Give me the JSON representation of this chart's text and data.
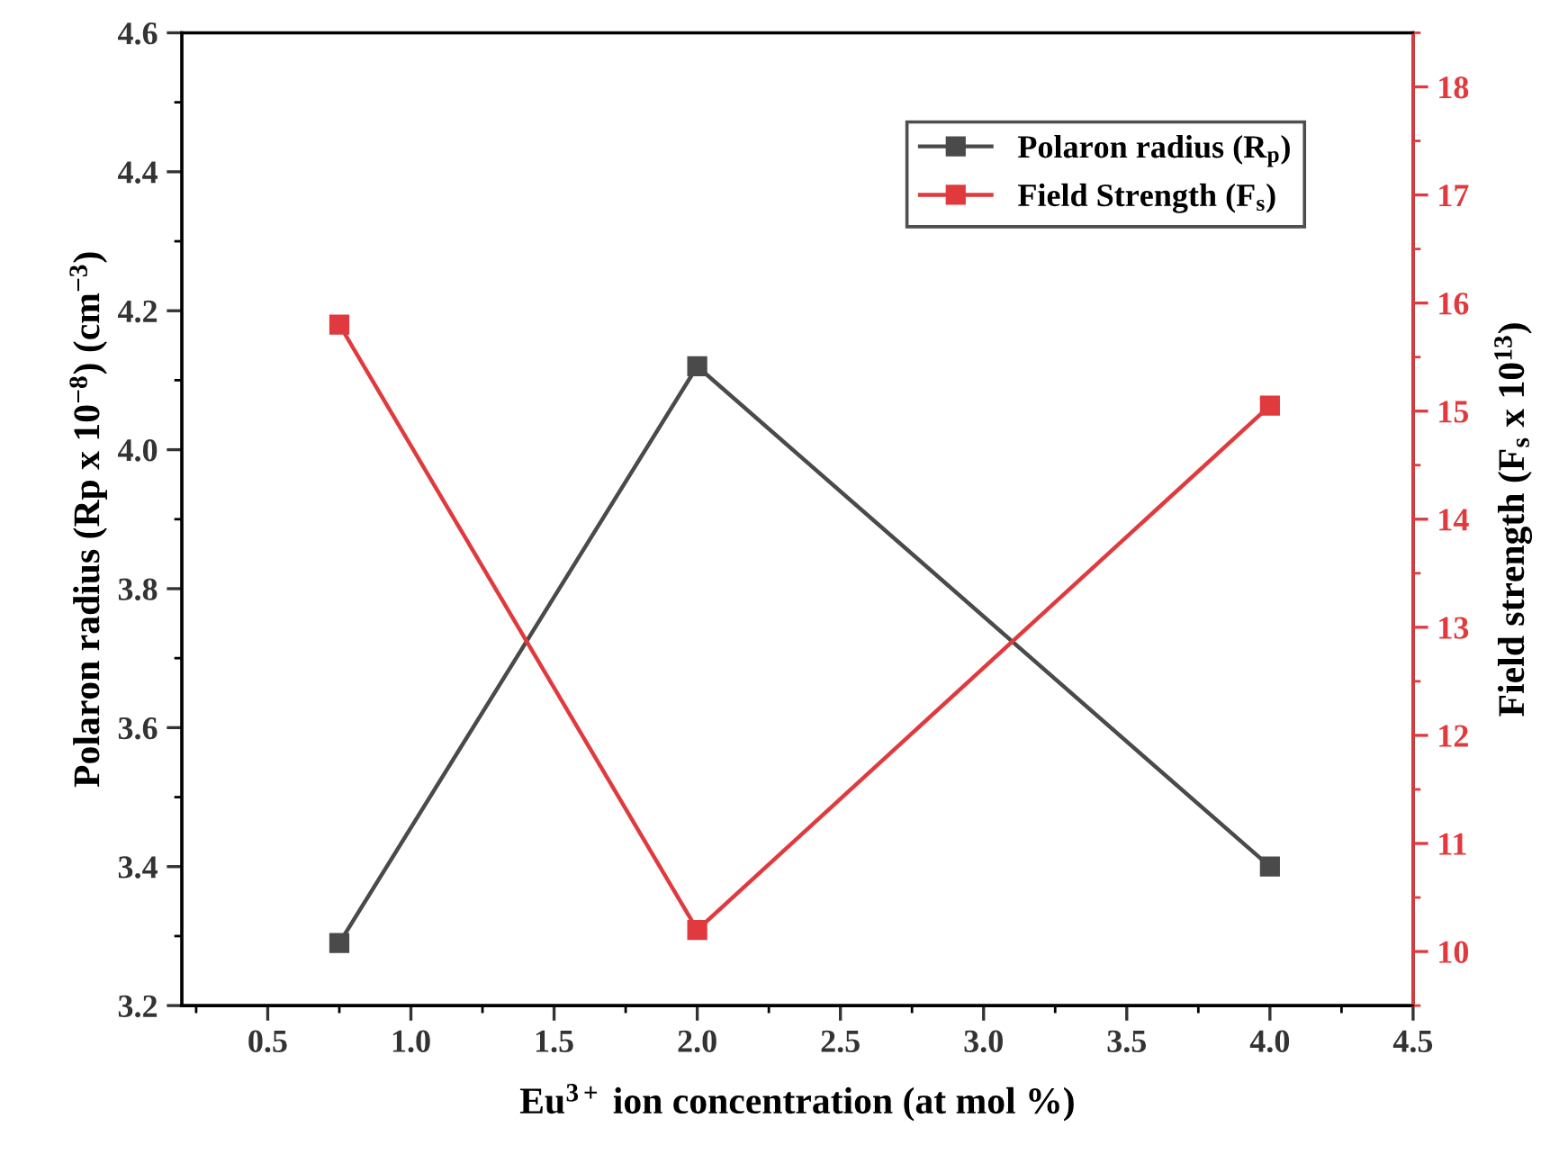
{
  "chart_data": {
    "type": "line",
    "xlabel": "Eu$^{3+}$ ion concentration (at mol %)",
    "ylabel": "Polaron radius (Rp x 10$^{−8}$) (cm$^{−3}$)",
    "y2label": "Field strength (F$_{s}$ x 10$^{13}$)",
    "x": [
      0.75,
      2.0,
      4.0
    ],
    "series": [
      {
        "name": "Polaron radius (R$_{p}$)",
        "color": "#4a4a4a",
        "values": [
          3.29,
          4.12,
          3.4
        ]
      },
      {
        "name": "Field Strength (F$_{s}$)",
        "color": "#e03a3e",
        "values": [
          15.8,
          10.2,
          15.05
        ],
        "axis": "y2"
      }
    ],
    "xlim": [
      0.2,
      4.5
    ],
    "xticks": [
      0.5,
      {
        "value": 1,
        "label": "1.0"
      },
      1.5,
      {
        "value": 2,
        "label": "2.0"
      },
      2.5,
      {
        "value": 3,
        "label": "3.0"
      },
      3.5,
      {
        "value": 4,
        "label": "4.0"
      },
      4.5
    ],
    "ylim": [
      3.2,
      4.6
    ],
    "yticks": [
      3.2,
      3.4,
      3.6,
      3.8,
      {
        "value": 4,
        "label": "4.0"
      },
      4.2,
      4.4,
      4.6
    ],
    "y2lim": [
      9.5,
      18.5
    ],
    "y2ticks": [
      10,
      11,
      12,
      13,
      14,
      15,
      16,
      17,
      18
    ],
    "marker": "square",
    "line_style": "solid",
    "grid": false,
    "legend": "top right"
  }
}
